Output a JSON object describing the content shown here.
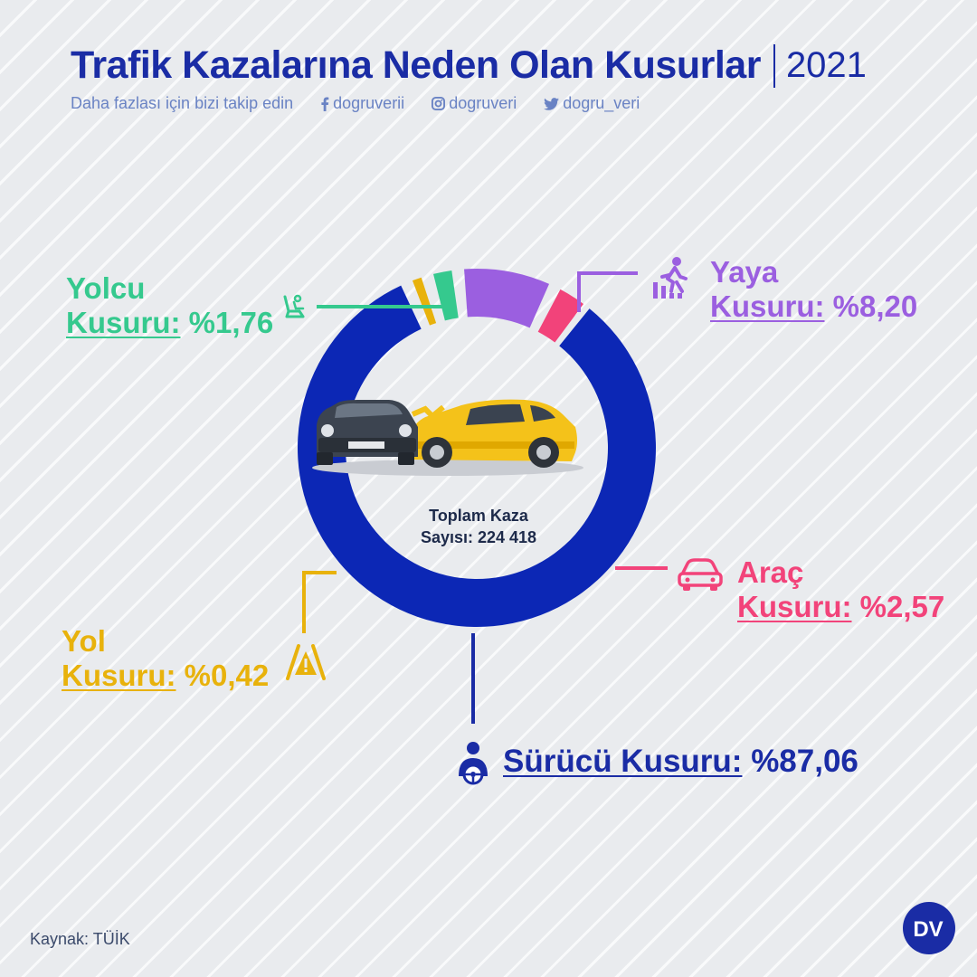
{
  "header": {
    "title": "Trafik Kazalarına Neden Olan Kusurlar",
    "year": "2021",
    "follow_text": "Daha fazlası için bizi takip edin",
    "facebook": "dogruverii",
    "instagram": "dogruveri",
    "twitter": "dogru_veri"
  },
  "center": {
    "line1": "Toplam Kaza",
    "line2": "Sayısı: 224 418"
  },
  "labels": {
    "yolcu": {
      "line1": "Yolcu",
      "line2": "Kusuru:",
      "value": "%1,76"
    },
    "yaya": {
      "line1": "Yaya",
      "line2": "Kusuru:",
      "value": "%8,20"
    },
    "arac": {
      "line1": "Araç",
      "line2": "Kusuru:",
      "value": "%2,57"
    },
    "yol": {
      "line1": "Yol",
      "line2": "Kusuru:",
      "value": "%0,42"
    },
    "surucu": {
      "line1": "Sürücü Kusuru:",
      "value": "%87,06"
    }
  },
  "source": "Kaynak: TÜİK",
  "logo_text": "DV",
  "chart_data": {
    "type": "pie",
    "style": "donut",
    "title": "Trafik Kazalarına Neden Olan Kusurlar",
    "total_label": "Toplam Kaza Sayısı: 224 418",
    "slices": [
      {
        "name": "Sürücü Kusuru",
        "value": 87.06,
        "color": "#0c27b5"
      },
      {
        "name": "Yol Kusuru",
        "value": 0.42,
        "color": "#e8b20c"
      },
      {
        "name": "Yolcu Kusuru",
        "value": 1.76,
        "color": "#35c98e"
      },
      {
        "name": "Yaya Kusuru",
        "value": 8.2,
        "color": "#9b5fe0"
      },
      {
        "name": "Araç Kusuru",
        "value": 2.57,
        "color": "#f2437a"
      }
    ]
  }
}
